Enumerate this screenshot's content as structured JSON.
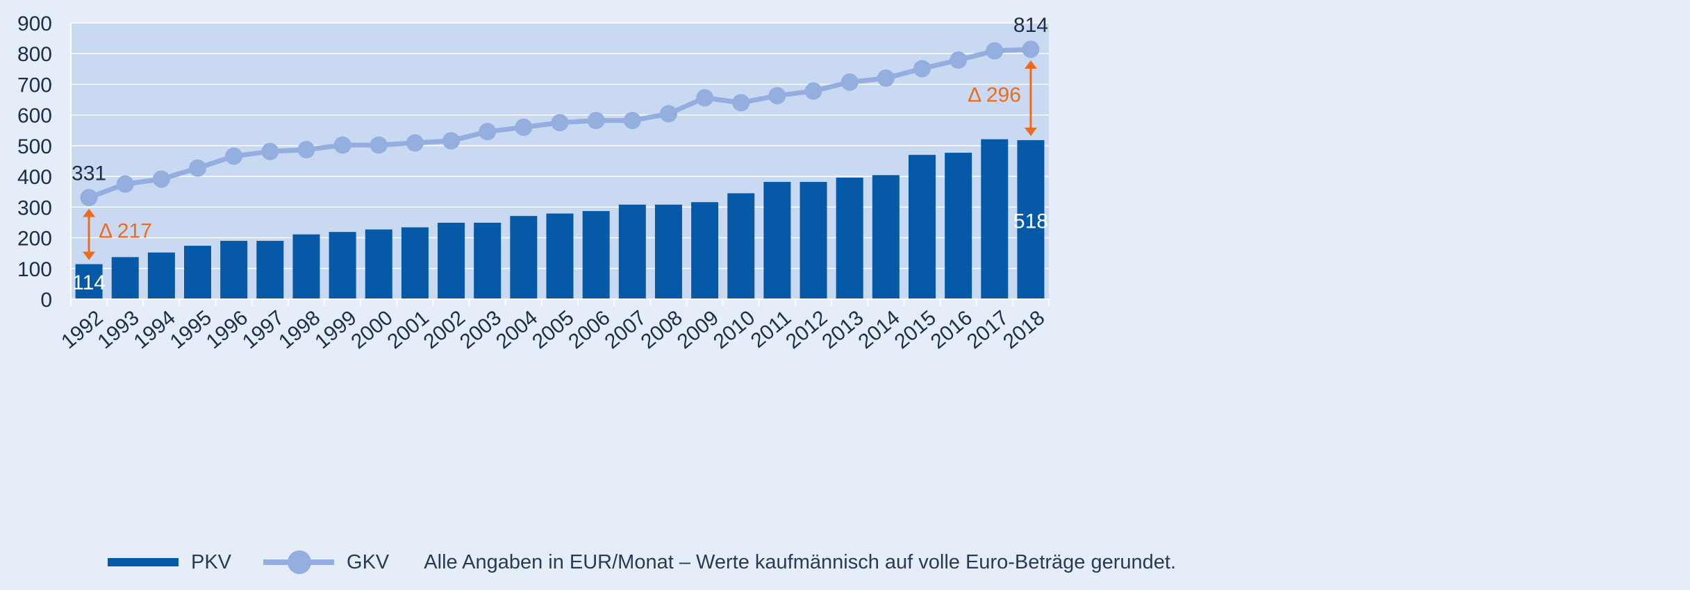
{
  "colors": {
    "page_background": "#e4edf8",
    "plot_background": "#c9d9f1",
    "gridline": "#ffffff",
    "pkv_bar": "#0559a6",
    "gkv_line": "#94aedf",
    "delta_arrow": "#ec6b1e",
    "axis_text": "#1f2d4a"
  },
  "chart_data": {
    "type": "bar",
    "categories": [
      "1992",
      "1993",
      "1994",
      "1995",
      "1996",
      "1997",
      "1998",
      "1999",
      "2000",
      "2001",
      "2002",
      "2003",
      "2004",
      "2005",
      "2006",
      "2007",
      "2008",
      "2009",
      "2010",
      "2011",
      "2012",
      "2013",
      "2014",
      "2015",
      "2016",
      "2017",
      "2018"
    ],
    "series": [
      {
        "name": "PKV",
        "kind": "bar",
        "values": [
          114,
          137,
          152,
          174,
          190,
          190,
          211,
          219,
          227,
          234,
          249,
          249,
          271,
          279,
          287,
          308,
          308,
          316,
          345,
          382,
          382,
          396,
          404,
          470,
          477,
          521,
          518
        ]
      },
      {
        "name": "GKV",
        "kind": "line",
        "values": [
          331,
          375,
          391,
          427,
          466,
          481,
          487,
          502,
          502,
          509,
          516,
          546,
          560,
          575,
          582,
          582,
          604,
          656,
          640,
          663,
          678,
          707,
          720,
          751,
          779,
          809,
          814
        ]
      }
    ],
    "ylim": [
      0,
      900
    ],
    "yticks": [
      "0",
      "100",
      "200",
      "300",
      "400",
      "500",
      "600",
      "700",
      "800",
      "900"
    ],
    "grid": true,
    "data_labels": {
      "gkv_first": "331",
      "gkv_last": "814",
      "pkv_first": "114",
      "pkv_last": "518"
    },
    "annotations": {
      "delta_first": "Δ 217",
      "delta_last": "Δ 296"
    },
    "legend": {
      "position": "bottom-left",
      "pkv_label": "PKV",
      "gkv_label": "GKV",
      "note": "Alle Angaben in EUR/Monat – Werte kaufmännisch auf volle Euro-Beträge gerundet."
    }
  }
}
